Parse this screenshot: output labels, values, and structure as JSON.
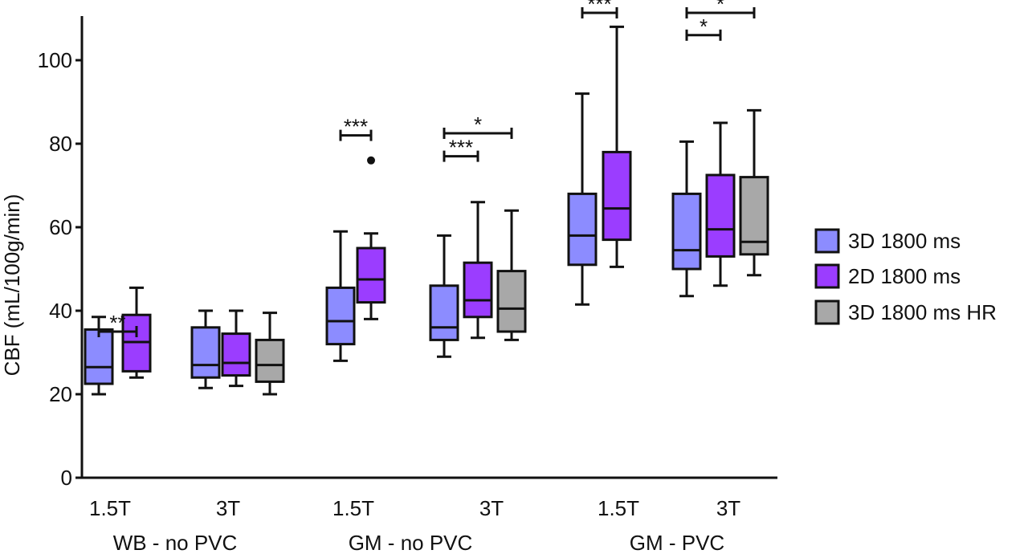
{
  "chart_data": {
    "type": "boxplot",
    "ylabel": "CBF (mL/100g/min)",
    "ylim": [
      0,
      110
    ],
    "yticks": [
      0,
      20,
      40,
      60,
      80,
      100
    ],
    "groups": [
      {
        "label": "WB - no PVC",
        "subgroups": [
          {
            "label": "1.5T",
            "boxes": [
              {
                "series": "3D 1800 ms",
                "min": 20,
                "q1": 22.5,
                "median": 26.5,
                "q3": 35.5,
                "max": 38.5
              },
              {
                "series": "2D 1800 ms",
                "min": 24,
                "q1": 25.5,
                "median": 32.5,
                "q3": 39,
                "max": 45.5
              }
            ]
          },
          {
            "label": "3T",
            "boxes": [
              {
                "series": "3D 1800 ms",
                "min": 21.5,
                "q1": 24,
                "median": 27,
                "q3": 36,
                "max": 40
              },
              {
                "series": "2D 1800 ms",
                "min": 22,
                "q1": 24.5,
                "median": 27.5,
                "q3": 34.5,
                "max": 40
              },
              {
                "series": "3D 1800 ms HR",
                "min": 20,
                "q1": 23,
                "median": 27,
                "q3": 33,
                "max": 39.5
              }
            ]
          }
        ]
      },
      {
        "label": "GM - no PVC",
        "subgroups": [
          {
            "label": "1.5T",
            "boxes": [
              {
                "series": "3D 1800 ms",
                "min": 28,
                "q1": 32,
                "median": 37.5,
                "q3": 45.5,
                "max": 59
              },
              {
                "series": "2D 1800 ms",
                "min": 38,
                "q1": 42,
                "median": 47.5,
                "q3": 55,
                "max": 58.5,
                "outliers": [
                  76
                ]
              }
            ]
          },
          {
            "label": "3T",
            "boxes": [
              {
                "series": "3D 1800 ms",
                "min": 29,
                "q1": 33,
                "median": 36,
                "q3": 46,
                "max": 58
              },
              {
                "series": "2D 1800 ms",
                "min": 33.5,
                "q1": 38.5,
                "median": 42.5,
                "q3": 51.5,
                "max": 66
              },
              {
                "series": "3D 1800 ms HR",
                "min": 33,
                "q1": 35,
                "median": 40.5,
                "q3": 49.5,
                "max": 64
              }
            ]
          }
        ]
      },
      {
        "label": "GM - PVC",
        "subgroups": [
          {
            "label": "1.5T",
            "boxes": [
              {
                "series": "3D 1800 ms",
                "min": 41.5,
                "q1": 51,
                "median": 58,
                "q3": 68,
                "max": 92
              },
              {
                "series": "2D 1800 ms",
                "min": 50.5,
                "q1": 57,
                "median": 64.5,
                "q3": 78,
                "max": 108
              }
            ]
          },
          {
            "label": "3T",
            "boxes": [
              {
                "series": "3D 1800 ms",
                "min": 43.5,
                "q1": 50,
                "median": 54.5,
                "q3": 68,
                "max": 80.5
              },
              {
                "series": "2D 1800 ms",
                "min": 46,
                "q1": 53,
                "median": 59.5,
                "q3": 72.5,
                "max": 85
              },
              {
                "series": "3D 1800 ms HR",
                "min": 48.5,
                "q1": 53.5,
                "median": 56.5,
                "q3": 72,
                "max": 88
              }
            ]
          }
        ]
      }
    ],
    "series": [
      {
        "name": "3D 1800 ms",
        "color": "#8c8cff"
      },
      {
        "name": "2D 1800 ms",
        "color": "#9b3dff"
      },
      {
        "name": "3D 1800 ms HR",
        "color": "#a8a8a8"
      }
    ],
    "significance": [
      {
        "group": 0,
        "subgroup": 0,
        "from": 0,
        "to": 1,
        "y": 35,
        "label": "**"
      },
      {
        "group": 1,
        "subgroup": 0,
        "from": 0,
        "to": 1,
        "y": 82,
        "label": "***"
      },
      {
        "group": 1,
        "subgroup": 1,
        "from": 0,
        "to": 1,
        "y": 77,
        "label": "***"
      },
      {
        "group": 1,
        "subgroup": 1,
        "from": 0,
        "to": 2,
        "y": 82.5,
        "label": "*"
      },
      {
        "group": 2,
        "subgroup": 0,
        "from": 0,
        "to": 1,
        "y": 112,
        "label": "***"
      },
      {
        "group": 2,
        "subgroup": 1,
        "from": 0,
        "to": 1,
        "y": 106,
        "label": "*"
      },
      {
        "group": 2,
        "subgroup": 1,
        "from": 0,
        "to": 2,
        "y": 112,
        "label": "*"
      }
    ],
    "legend_position": "right"
  }
}
